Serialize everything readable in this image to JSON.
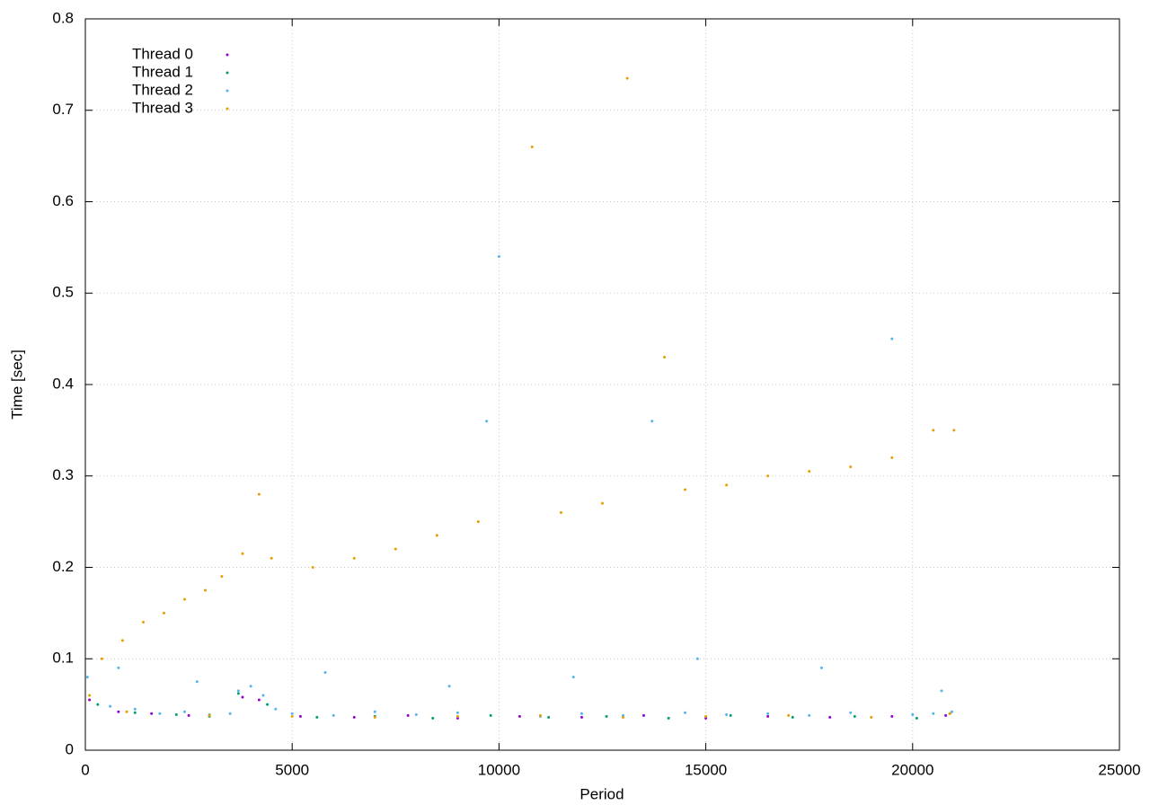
{
  "chart_data": {
    "type": "scatter",
    "xlabel": "Period",
    "ylabel": "Time [sec]",
    "xlim": [
      0,
      25000
    ],
    "xticks": [
      0,
      5000,
      10000,
      15000,
      20000,
      25000
    ],
    "ylim": [
      0,
      0.8
    ],
    "yticks": [
      0,
      0.1,
      0.2,
      0.3,
      0.4,
      0.5,
      0.6,
      0.7,
      0.8
    ],
    "grid": true,
    "legend": "upper-left",
    "series": [
      {
        "name": "Thread 0",
        "color": "#9400d3",
        "x": [
          100,
          800,
          1600,
          2500,
          3800,
          4200,
          5200,
          6500,
          7800,
          9000,
          10500,
          12000,
          13500,
          15000,
          16500,
          18000,
          19500,
          20800
        ],
        "values": [
          0.055,
          0.042,
          0.04,
          0.038,
          0.058,
          0.055,
          0.037,
          0.036,
          0.038,
          0.035,
          0.037,
          0.036,
          0.038,
          0.035,
          0.037,
          0.036,
          0.037,
          0.038
        ]
      },
      {
        "name": "Thread 1",
        "color": "#009e73",
        "x": [
          300,
          1200,
          2200,
          3000,
          3700,
          4400,
          5600,
          7000,
          8400,
          9800,
          11200,
          12600,
          14100,
          15600,
          17100,
          18600,
          20100,
          20900
        ],
        "values": [
          0.05,
          0.041,
          0.039,
          0.037,
          0.062,
          0.05,
          0.036,
          0.037,
          0.035,
          0.038,
          0.036,
          0.037,
          0.035,
          0.038,
          0.036,
          0.037,
          0.035,
          0.04
        ]
      },
      {
        "name": "Thread 2",
        "color": "#56b4e9",
        "x": [
          50,
          600,
          1200,
          1800,
          2400,
          3000,
          3500,
          3700,
          4000,
          4300,
          4600,
          5000,
          6000,
          7000,
          8000,
          9000,
          9700,
          10000,
          11000,
          12000,
          13000,
          13700,
          14500,
          15500,
          16500,
          17500,
          18500,
          19500,
          20000,
          20500,
          20950,
          800,
          2700,
          5800,
          8800,
          11800,
          14800,
          17800,
          20700
        ],
        "values": [
          0.08,
          0.048,
          0.045,
          0.04,
          0.042,
          0.039,
          0.04,
          0.065,
          0.07,
          0.06,
          0.045,
          0.04,
          0.038,
          0.042,
          0.039,
          0.041,
          0.36,
          0.54,
          0.037,
          0.04,
          0.038,
          0.36,
          0.041,
          0.039,
          0.04,
          0.038,
          0.041,
          0.45,
          0.039,
          0.04,
          0.042,
          0.09,
          0.075,
          0.085,
          0.07,
          0.08,
          0.1,
          0.09,
          0.065
        ]
      },
      {
        "name": "Thread 3",
        "color": "#e69f00",
        "x": [
          100,
          400,
          900,
          1400,
          1900,
          2400,
          2900,
          3300,
          3800,
          4200,
          4500,
          5500,
          6500,
          7500,
          8500,
          9500,
          10800,
          11500,
          12500,
          13100,
          14000,
          14500,
          15500,
          16500,
          17500,
          18500,
          19500,
          20500,
          21000,
          1000,
          3000,
          5000,
          7000,
          9000,
          11000,
          13000,
          15000,
          17000,
          19000,
          20900
        ],
        "values": [
          0.06,
          0.1,
          0.12,
          0.14,
          0.15,
          0.165,
          0.175,
          0.19,
          0.215,
          0.28,
          0.21,
          0.2,
          0.21,
          0.22,
          0.235,
          0.25,
          0.66,
          0.26,
          0.27,
          0.735,
          0.43,
          0.285,
          0.29,
          0.3,
          0.305,
          0.31,
          0.32,
          0.35,
          0.35,
          0.042,
          0.038,
          0.037,
          0.036,
          0.037,
          0.038,
          0.036,
          0.037,
          0.038,
          0.036,
          0.04
        ]
      }
    ]
  }
}
